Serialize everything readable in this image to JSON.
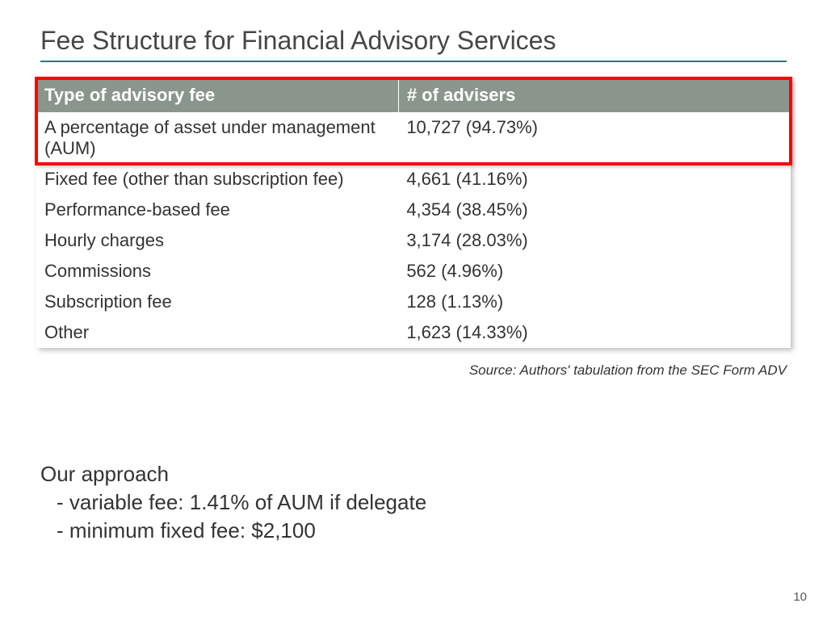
{
  "title": "Fee Structure for Financial Advisory Services",
  "table": {
    "header_bg": "#8a968c",
    "header_color": "#ffffff",
    "columns": [
      "Type of advisory fee",
      "# of advisers"
    ],
    "rows": [
      {
        "fee": "A percentage of asset under management (AUM)",
        "advisers": "10,727 (94.73%)"
      },
      {
        "fee": "Fixed fee (other than subscription fee)",
        "advisers": "4,661 (41.16%)"
      },
      {
        "fee": "Performance-based fee",
        "advisers": "4,354 (38.45%)"
      },
      {
        "fee": "Hourly charges",
        "advisers": "3,174 (28.03%)"
      },
      {
        "fee": "Commissions",
        "advisers": "562 (4.96%)"
      },
      {
        "fee": "Subscription fee",
        "advisers": "128 (1.13%)"
      },
      {
        "fee": "Other",
        "advisers": "1,623 (14.33%)"
      }
    ],
    "highlight_row_index": 0,
    "highlight_border_color": "#ff0000",
    "font_size": 22,
    "text_color": "#333333"
  },
  "source_note": "Source: Authors' tabulation from the  SEC Form ADV",
  "approach": {
    "heading": "Our approach",
    "lines": [
      "- variable fee: 1.41% of AUM if delegate",
      "- minimum fixed fee: $2,100"
    ]
  },
  "page_number": "10",
  "colors": {
    "title_underline": "#2a7a7a",
    "title_text": "#464646",
    "background": "#ffffff"
  }
}
